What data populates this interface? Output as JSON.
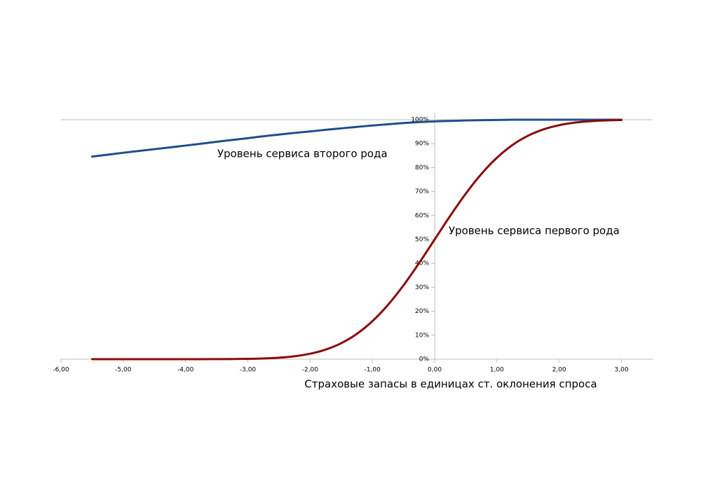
{
  "chart_data": {
    "type": "line",
    "x_label": "Страховые запасы в единицах ст. оклонения спроса",
    "x": [
      -5.5,
      -5,
      -4.5,
      -4,
      -3.5,
      -3,
      -2.75,
      -2.5,
      -2.25,
      -2,
      -1.75,
      -1.5,
      -1.25,
      -1,
      -0.75,
      -0.5,
      -0.25,
      0,
      0.25,
      0.5,
      0.75,
      1,
      1.25,
      1.5,
      1.75,
      2,
      2.25,
      2.5,
      2.75,
      3
    ],
    "series": [
      {
        "name": "Уровень сервиса второго рода",
        "color": "#1f4e8c",
        "values": [
          84.6,
          86.2,
          87.7,
          89.2,
          90.8,
          92.3,
          93.1,
          93.8,
          94.5,
          95.1,
          95.8,
          96.4,
          97.0,
          97.6,
          98.1,
          98.6,
          99.0,
          99.3,
          99.5,
          99.7,
          99.8,
          99.9,
          100,
          100,
          100,
          100,
          100,
          100,
          100,
          100
        ]
      },
      {
        "name": "Уровень сервиса первого рода",
        "color": "#8b0a0a",
        "values": [
          0,
          0,
          0,
          0,
          0.02,
          0.13,
          0.3,
          0.62,
          1.22,
          2.28,
          4.01,
          6.68,
          10.56,
          15.87,
          22.66,
          30.85,
          40.13,
          50,
          59.87,
          69.15,
          77.34,
          84.13,
          89.44,
          93.32,
          95.99,
          97.72,
          98.78,
          99.38,
          99.7,
          99.87
        ]
      }
    ],
    "xlim": [
      -6,
      3.5
    ],
    "xticks": [
      {
        "value": -6,
        "label": "-6,00"
      },
      {
        "value": -5,
        "label": "-5,00"
      },
      {
        "value": -4,
        "label": "-4,00"
      },
      {
        "value": -3,
        "label": "-3,00"
      },
      {
        "value": -2,
        "label": "-2,00"
      },
      {
        "value": -1,
        "label": "-1,00"
      },
      {
        "value": 0,
        "label": "0,00"
      },
      {
        "value": 1,
        "label": "1,00"
      },
      {
        "value": 2,
        "label": "2,00"
      },
      {
        "value": 3,
        "label": "3,00"
      }
    ],
    "ylim": [
      0,
      100
    ],
    "yticks": [
      {
        "value": 0,
        "label": "0%"
      },
      {
        "value": 10,
        "label": "10%"
      },
      {
        "value": 20,
        "label": "20%"
      },
      {
        "value": 30,
        "label": "30%"
      },
      {
        "value": 40,
        "label": "40%"
      },
      {
        "value": 50,
        "label": "50%"
      },
      {
        "value": 60,
        "label": "60%"
      },
      {
        "value": 70,
        "label": "70%"
      },
      {
        "value": 80,
        "label": "80%"
      },
      {
        "value": 90,
        "label": "90%"
      },
      {
        "value": 100,
        "label": "100%"
      }
    ]
  }
}
